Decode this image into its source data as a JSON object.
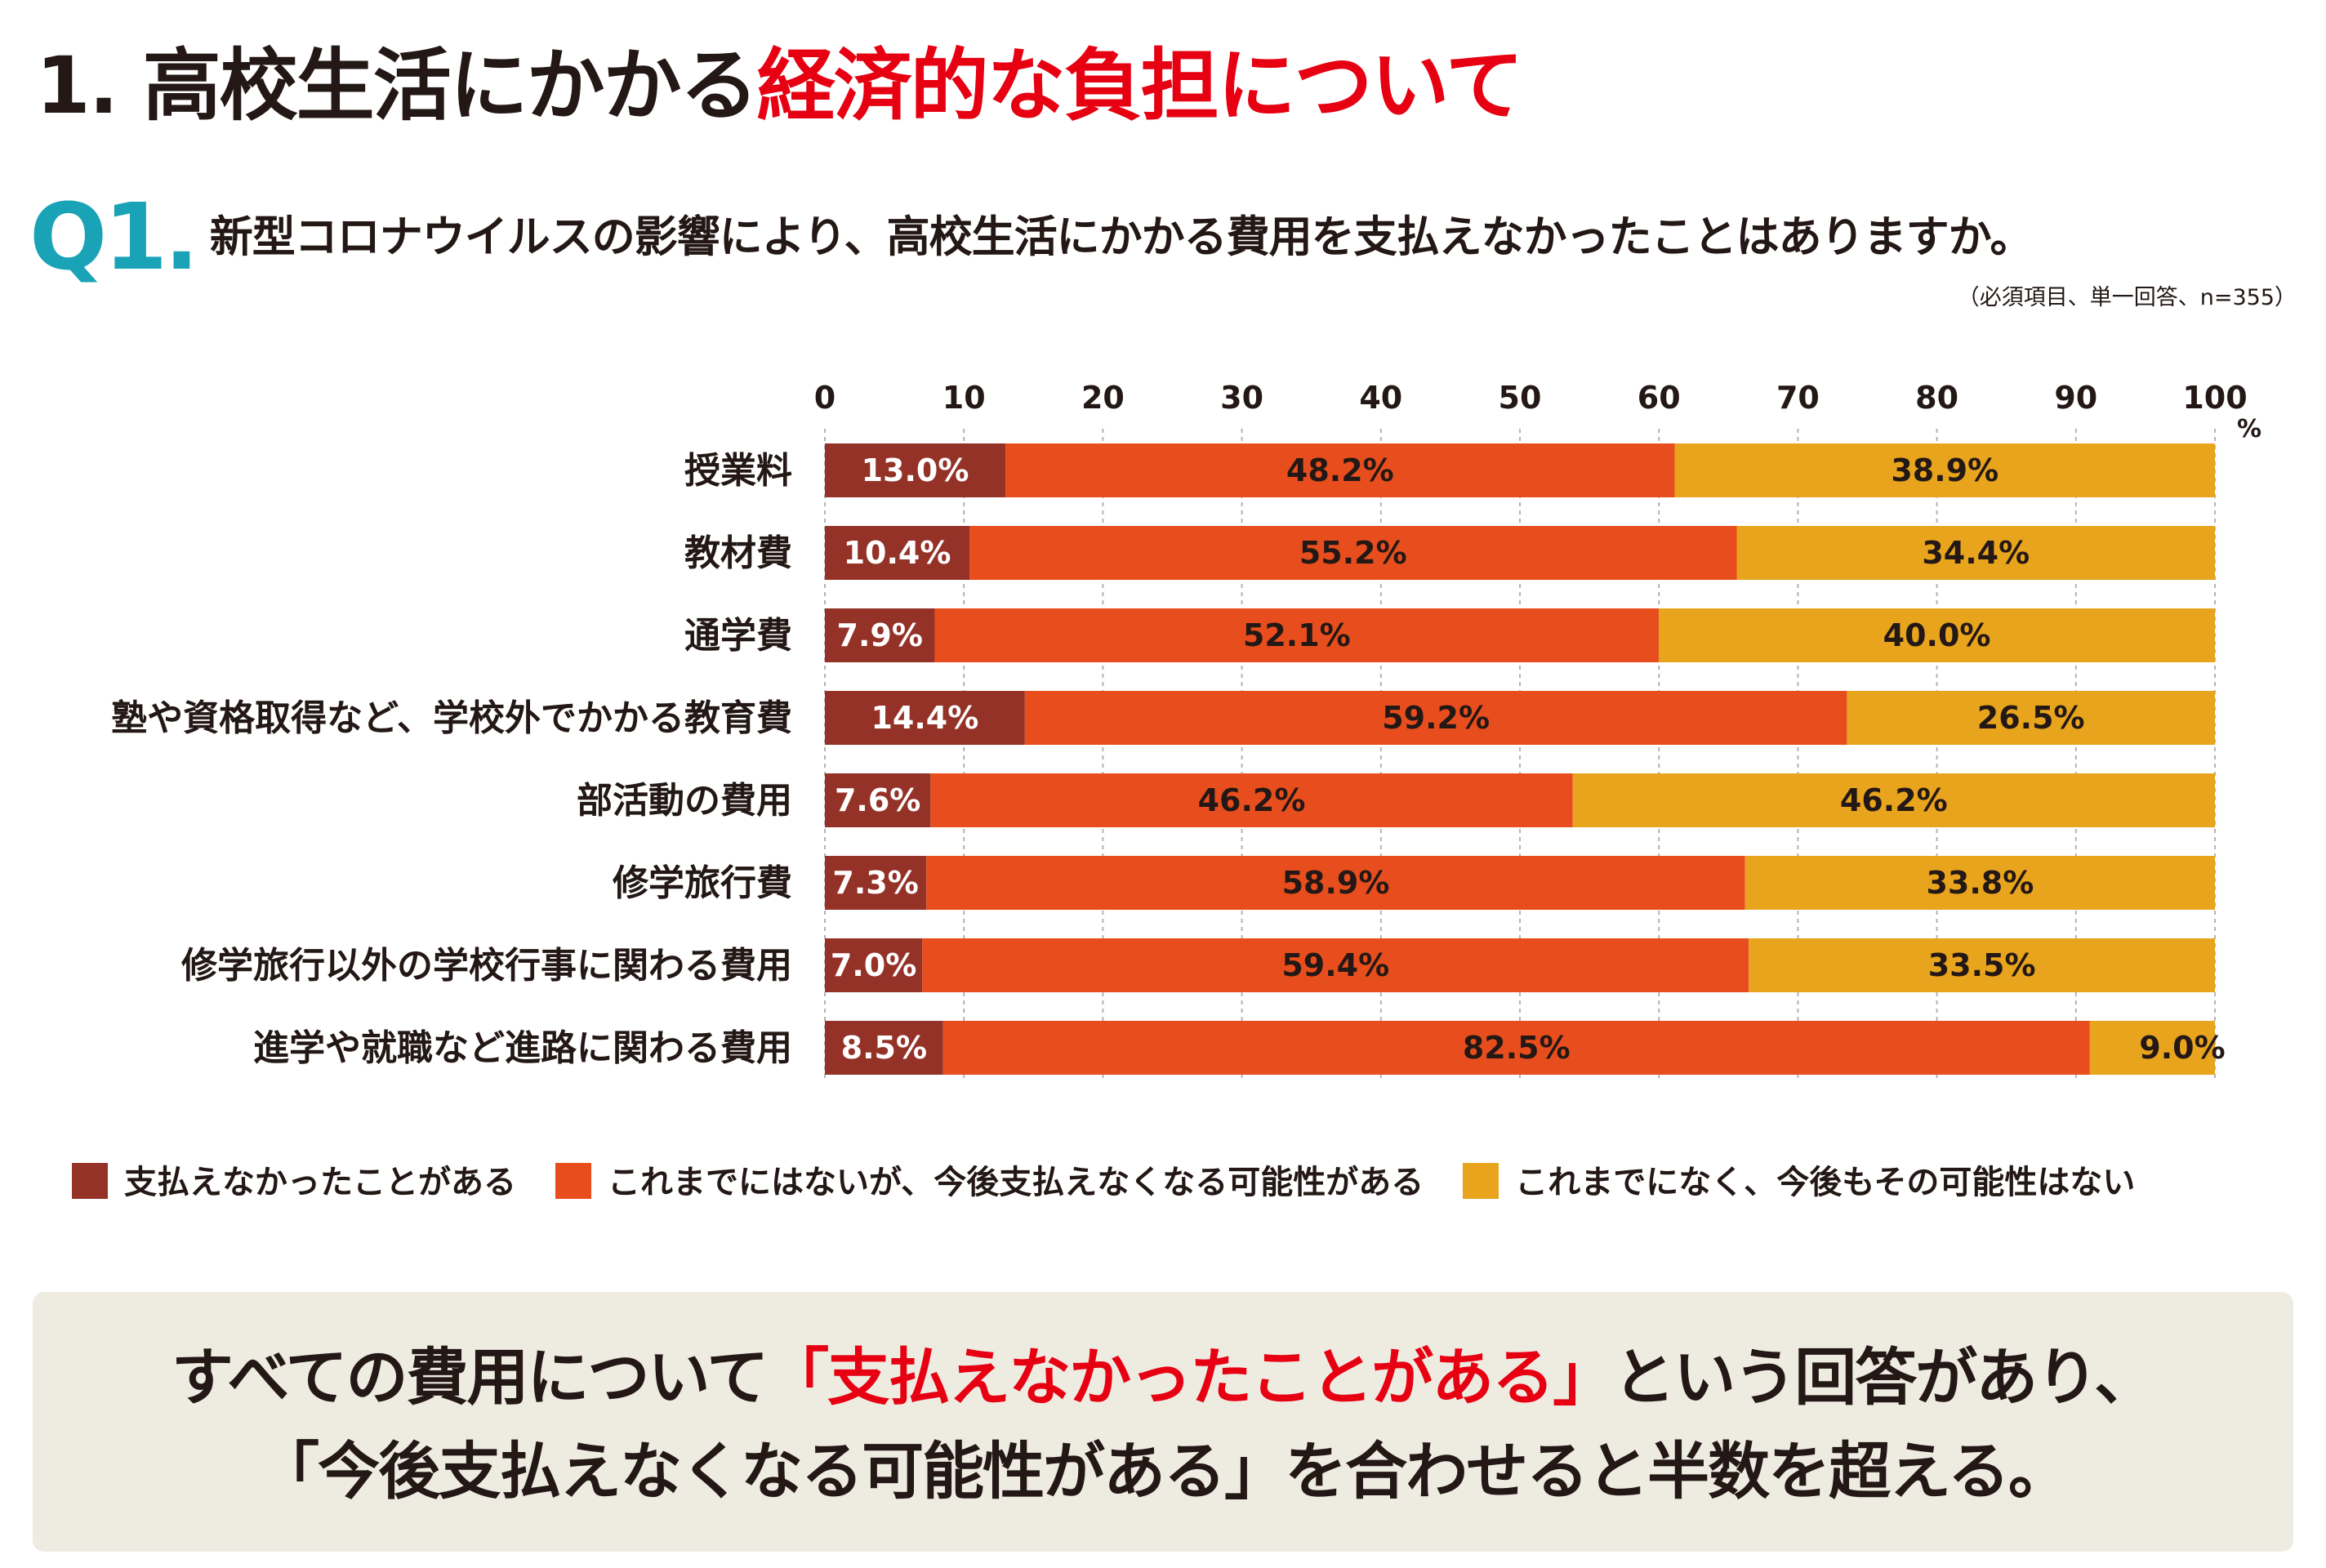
{
  "header": {
    "title_main": "1. 高校生活にかかる",
    "title_accent": "経済的な負担について",
    "question_number": "Q1.",
    "question_text": "新型コロナウイルスの影響により、高校生活にかかる費用を支払えなかったことはありますか。",
    "question_note": "（必須項目、単一回答、n=355）"
  },
  "chart_data": {
    "type": "bar",
    "orientation": "horizontal",
    "stacked": true,
    "xlim": [
      0,
      100
    ],
    "x_ticks": [
      "0",
      "10",
      "20",
      "30",
      "40",
      "50",
      "60",
      "70",
      "80",
      "90",
      "100"
    ],
    "x_unit": "%",
    "grid": true,
    "categories": [
      "授業料",
      "教材費",
      "通学費",
      "塾や資格取得など、学校外でかかる教育費",
      "部活動の費用",
      "修学旅行費",
      "修学旅行以外の学校行事に関わる費用",
      "進学や就職など進路に関わる費用"
    ],
    "series": [
      {
        "name": "支払えなかったことがある",
        "color": "#943228",
        "values": [
          13.0,
          10.4,
          7.9,
          14.4,
          7.6,
          7.3,
          7.0,
          8.5
        ]
      },
      {
        "name": "これまでにはないが、今後支払えなくなる可能性がある",
        "color": "#e84e1d",
        "values": [
          48.2,
          55.2,
          52.1,
          59.2,
          46.2,
          58.9,
          59.4,
          82.5
        ]
      },
      {
        "name": "これまでになく、今後もその可能性はない",
        "color": "#e8a41c",
        "values": [
          38.9,
          34.4,
          40.0,
          26.5,
          46.2,
          33.8,
          33.5,
          9.0
        ]
      }
    ],
    "legend_position": "bottom"
  },
  "summary": {
    "line1_a": "すべての費用について",
    "line1_accent": "「支払えなかったことがある」",
    "line1_b": "という回答があり、",
    "line2": "「今後支払えなくなる可能性がある」を合わせると半数を超える。"
  }
}
